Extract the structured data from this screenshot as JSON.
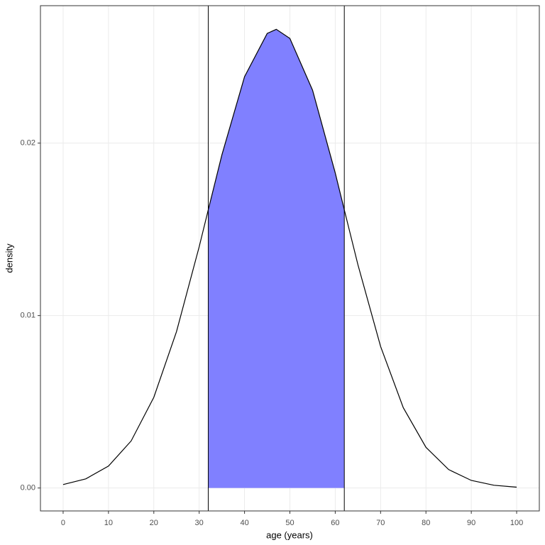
{
  "chart_data": {
    "type": "line",
    "xlabel": "age (years)",
    "ylabel": "density",
    "x": [
      0,
      5,
      10,
      15,
      20,
      25,
      30,
      32,
      35,
      40,
      45,
      47,
      50,
      55,
      60,
      62,
      65,
      70,
      75,
      80,
      85,
      90,
      95,
      100
    ],
    "series": [
      {
        "color": "#000000",
        "values": [
          0.0002,
          0.00053,
          0.00127,
          0.00273,
          0.00526,
          0.00907,
          0.01399,
          0.01613,
          0.01931,
          0.02385,
          0.02636,
          0.0266,
          0.02607,
          0.02307,
          0.01827,
          0.01613,
          0.01295,
          0.00821,
          0.00466,
          0.00236,
          0.00107,
          0.00044,
          0.00016,
          5e-05
        ]
      }
    ],
    "shade": {
      "from": 32,
      "to": 62,
      "color": "#8080ff"
    },
    "vlines": [
      32,
      62
    ],
    "xlim": [
      -5,
      105
    ],
    "ylim": [
      -0.00133,
      0.02797
    ],
    "xticks": [
      0,
      10,
      20,
      30,
      40,
      50,
      60,
      70,
      80,
      90,
      100
    ],
    "yticks": [
      {
        "value": 0,
        "label": "0.00"
      },
      0.01,
      0.02
    ],
    "grid": true
  }
}
